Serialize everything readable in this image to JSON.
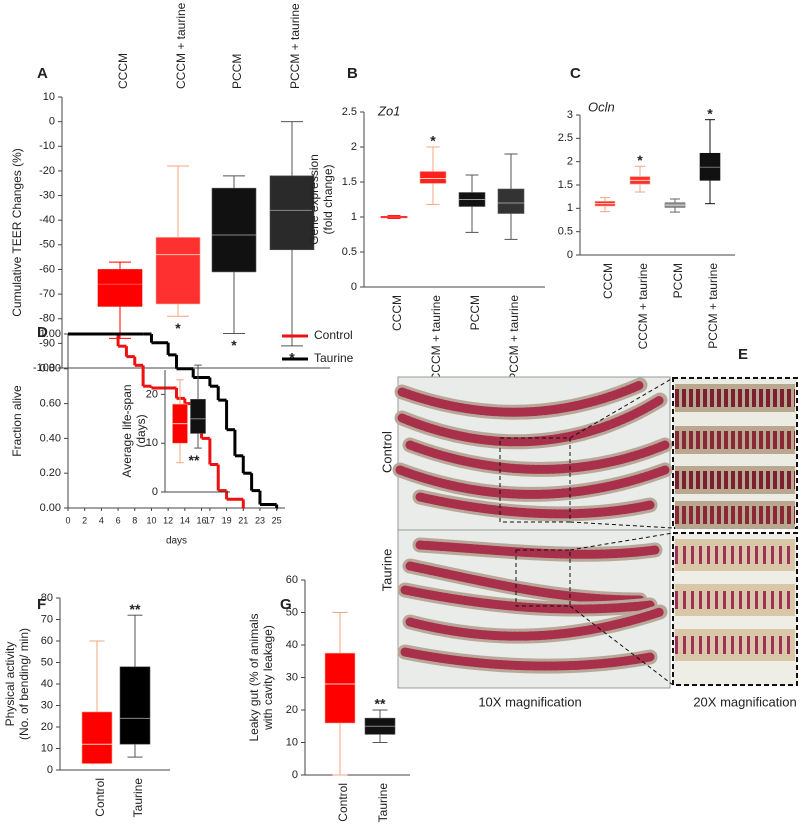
{
  "chart_data": [
    {
      "type": "box",
      "panel": "A",
      "ylabel": [
        "Cumulative TEER Changes (%)"
      ],
      "categories": [
        "CCCM",
        "CCCM + taurine",
        "PCCM",
        "PCCM + taurine"
      ],
      "boxes": [
        {
          "min": -88,
          "q1": -75,
          "median": -66,
          "q3": -60,
          "max": -57
        },
        {
          "min": -79,
          "q1": -74,
          "median": -54,
          "q3": -47,
          "max": -18
        },
        {
          "min": -86,
          "q1": -61,
          "median": -46,
          "q3": -27,
          "max": -22
        },
        {
          "min": -91,
          "q1": -52,
          "median": -36,
          "q3": -22,
          "max": 0
        }
      ],
      "colors": [
        "#ff0000",
        "#ff3030",
        "#111111",
        "#2a2a2a"
      ],
      "whisker_colors": [
        "#ff0000",
        "#f4a582",
        "#555555",
        "#555555"
      ],
      "median_colors": [
        "#ff5050",
        "#ffc0b0",
        "#888888",
        "#888888"
      ],
      "significance": [
        null,
        "*",
        "*",
        "*"
      ],
      "significance_position": "below",
      "category_position": "top",
      "ylim": [
        -100,
        10
      ],
      "yticks": [
        -100,
        -90,
        -80,
        -70,
        -60,
        -50,
        -40,
        -30,
        -20,
        -10,
        0,
        10
      ]
    },
    {
      "type": "box",
      "panel": "B",
      "title": "Zo1",
      "ylabel": [
        "Gene expression",
        "(fold change)"
      ],
      "categories": [
        "CCCM",
        "CCCM + taurine",
        "PCCM",
        "PCCM + taurine"
      ],
      "boxes": [
        {
          "min": 0.98,
          "q1": 0.99,
          "median": 1.0,
          "q3": 1.01,
          "max": 1.02
        },
        {
          "min": 1.18,
          "q1": 1.48,
          "median": 1.55,
          "q3": 1.65,
          "max": 2.0
        },
        {
          "min": 0.78,
          "q1": 1.15,
          "median": 1.25,
          "q3": 1.35,
          "max": 1.6
        },
        {
          "min": 0.68,
          "q1": 1.05,
          "median": 1.2,
          "q3": 1.4,
          "max": 1.9
        }
      ],
      "colors": [
        "#ff0000",
        "#ff2020",
        "#111111",
        "#333333"
      ],
      "whisker_colors": [
        "#ff0000",
        "#f4a582",
        "#555555",
        "#555555"
      ],
      "median_colors": [
        "#ff6666",
        "#ffd0c0",
        "#999999",
        "#999999"
      ],
      "significance": [
        null,
        "*",
        null,
        null
      ],
      "significance_position": "above",
      "category_position": "bottom",
      "ylim": [
        0,
        2.5
      ],
      "yticks": [
        0,
        0.5,
        1,
        1.5,
        2,
        2.5
      ]
    },
    {
      "type": "box",
      "panel": "C",
      "title": "Ocln",
      "categories": [
        "CCCM",
        "CCCM + taurine",
        "PCCM",
        "PCCM + taurine"
      ],
      "boxes": [
        {
          "min": 0.93,
          "q1": 1.05,
          "median": 1.1,
          "q3": 1.15,
          "max": 1.23
        },
        {
          "min": 1.35,
          "q1": 1.52,
          "median": 1.6,
          "q3": 1.68,
          "max": 1.9
        },
        {
          "min": 0.92,
          "q1": 1.02,
          "median": 1.07,
          "q3": 1.12,
          "max": 1.2
        },
        {
          "min": 1.1,
          "q1": 1.6,
          "median": 1.88,
          "q3": 2.18,
          "max": 2.9
        }
      ],
      "colors": [
        "#ff3030",
        "#ff3030",
        "#888888",
        "#111111"
      ],
      "whisker_colors": [
        "#f4a582",
        "#f4a582",
        "#666666",
        "#111111"
      ],
      "median_colors": [
        "#ffd0c0",
        "#ffd0c0",
        "#dddddd",
        "#777777"
      ],
      "significance": [
        null,
        "*",
        null,
        "*"
      ],
      "significance_position": "above",
      "category_position": "bottom",
      "ylim": [
        0,
        3
      ],
      "yticks": [
        0,
        0.5,
        1,
        1.5,
        2,
        2.5,
        3
      ]
    },
    {
      "type": "line",
      "panel": "D",
      "step": true,
      "xlabel": "days",
      "ylabel": [
        "Fraction alive"
      ],
      "series": [
        {
          "name": "Control",
          "color": "#ee1111",
          "x": [
            0,
            6,
            7,
            8,
            9,
            10,
            13,
            14,
            15,
            16,
            17,
            18,
            19,
            21
          ],
          "values": [
            1.0,
            0.93,
            0.87,
            0.82,
            0.7,
            0.69,
            0.63,
            0.6,
            0.55,
            0.4,
            0.25,
            0.1,
            0.05,
            0.0
          ]
        },
        {
          "name": "Taurine",
          "color": "#000000",
          "x": [
            0,
            9,
            10,
            12,
            13,
            15,
            17,
            18,
            19,
            20,
            21,
            22,
            23,
            25
          ],
          "values": [
            1.0,
            1.0,
            0.95,
            0.88,
            0.8,
            0.75,
            0.7,
            0.62,
            0.45,
            0.3,
            0.2,
            0.1,
            0.02,
            0.0
          ]
        }
      ],
      "xlim": [
        0,
        26
      ],
      "xticks": [
        0,
        2,
        4,
        6,
        8,
        10,
        12,
        14,
        16,
        17,
        19,
        21,
        23,
        25
      ],
      "ylim": [
        0,
        1
      ],
      "yticks": [
        {
          "value": 0,
          "label": "0.00"
        },
        {
          "value": 0.2,
          "label": "0.20"
        },
        {
          "value": 0.4,
          "label": "0.40"
        },
        {
          "value": 0.6,
          "label": "0.60"
        },
        {
          "value": 0.8,
          "label": "0.80"
        },
        {
          "value": 1,
          "label": "1.00"
        }
      ]
    },
    {
      "type": "box",
      "ylabel": [
        "Average life-span",
        "(days)"
      ],
      "boxes": [
        {
          "min": 6,
          "q1": 10,
          "median": 14,
          "q3": 18,
          "max": 23
        },
        {
          "min": 9,
          "q1": 12,
          "median": 15,
          "q3": 19,
          "max": 26
        }
      ],
      "colors": [
        "#ff0000",
        "#111111"
      ],
      "whisker_colors": [
        "#f4a582",
        "#555555"
      ],
      "median_colors": [
        "#ffd0c0",
        "#888888"
      ],
      "significance": [
        null,
        "**"
      ],
      "significance_position": "below",
      "ylim": [
        0,
        25
      ],
      "yticks": [
        0,
        10,
        20
      ]
    },
    {
      "type": "image",
      "panel": "E",
      "row_labels": [
        "Control",
        "Taurine"
      ],
      "captions": [
        "10X magnification",
        "20X magnification"
      ]
    },
    {
      "type": "box",
      "panel": "F",
      "ylabel": [
        "Physical activity",
        "(No. of bending/ min)"
      ],
      "categories": [
        "Control",
        "Taurine"
      ],
      "boxes": [
        {
          "min": 3,
          "q1": 3,
          "median": 12,
          "q3": 27,
          "max": 60
        },
        {
          "min": 6,
          "q1": 12,
          "median": 24,
          "q3": 48,
          "max": 72
        }
      ],
      "colors": [
        "#ff0000",
        "#000000"
      ],
      "whisker_colors": [
        "#f4a582",
        "#555555"
      ],
      "median_colors": [
        "#ffd0c0",
        "#888888"
      ],
      "significance": [
        null,
        "**"
      ],
      "significance_position": "above",
      "category_position": "bottom",
      "ylim": [
        0,
        80
      ],
      "yticks": [
        0,
        10,
        20,
        30,
        40,
        50,
        60,
        70,
        80
      ]
    },
    {
      "type": "box",
      "panel": "G",
      "ylabel": [
        "Leaky gut (% of animals",
        "with cavity leakage)"
      ],
      "categories": [
        "Control",
        "Taurine"
      ],
      "boxes": [
        {
          "min": 0,
          "q1": 16,
          "median": 28,
          "q3": 37.5,
          "max": 50
        },
        {
          "min": 10,
          "q1": 12.5,
          "median": 15,
          "q3": 17.5,
          "max": 20
        }
      ],
      "colors": [
        "#ff0000",
        "#111111"
      ],
      "whisker_colors": [
        "#f4a582",
        "#555555"
      ],
      "median_colors": [
        "#ffd0c0",
        "#888888"
      ],
      "significance": [
        null,
        "**"
      ],
      "significance_position": "above",
      "category_position": "bottom",
      "ylim": [
        0,
        60
      ],
      "yticks": [
        0,
        10,
        20,
        30,
        40,
        50,
        60
      ]
    }
  ]
}
